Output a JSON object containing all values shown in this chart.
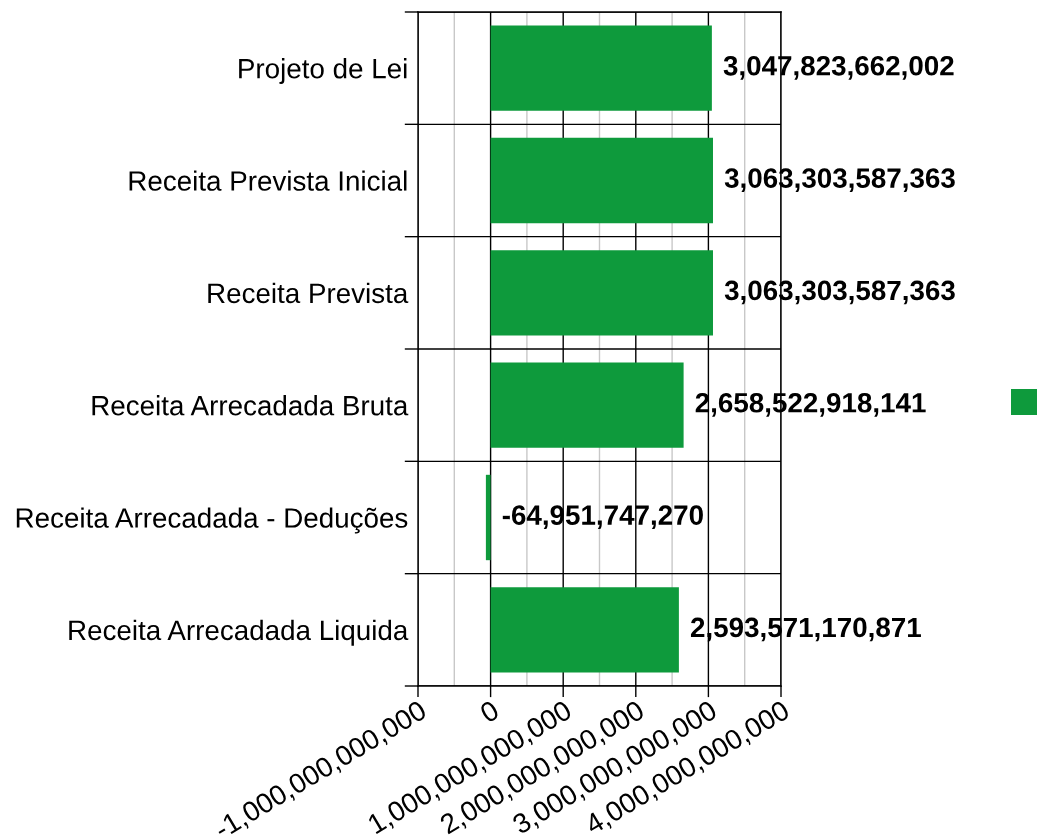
{
  "chart_data": {
    "type": "bar",
    "orientation": "horizontal",
    "categories": [
      "Projeto de Lei",
      "Receita Prevista Inicial",
      "Receita Prevista",
      "Receita Arrecadada Bruta",
      "Receita Arrecadada - Deduções",
      "Receita Arrecadada Liquida"
    ],
    "values": [
      3047823662002,
      3063303587363,
      3063303587363,
      2658522918141,
      -64951747270,
      2593571170871
    ],
    "value_labels": [
      "3,047,823,662,002",
      "3,063,303,587,363",
      "3,063,303,587,363",
      "2,658,522,918,141",
      "-64,951,747,270",
      "2,593,571,170,871"
    ],
    "color": "#0e9a3c",
    "xlim": [
      -1000000000000,
      4000000000000
    ],
    "xticks": [
      {
        "value": -1000000000000,
        "label": "-1,000,000,000,000"
      },
      0,
      {
        "value": 1000000000000,
        "label": "1,000,000,000,000"
      },
      {
        "value": 2000000000000,
        "label": "2,000,000,000,000"
      },
      {
        "value": 3000000000000,
        "label": "3,000,000,000,000"
      },
      {
        "value": 4000000000000,
        "label": "4,000,000,000,000"
      }
    ],
    "grid": true
  }
}
